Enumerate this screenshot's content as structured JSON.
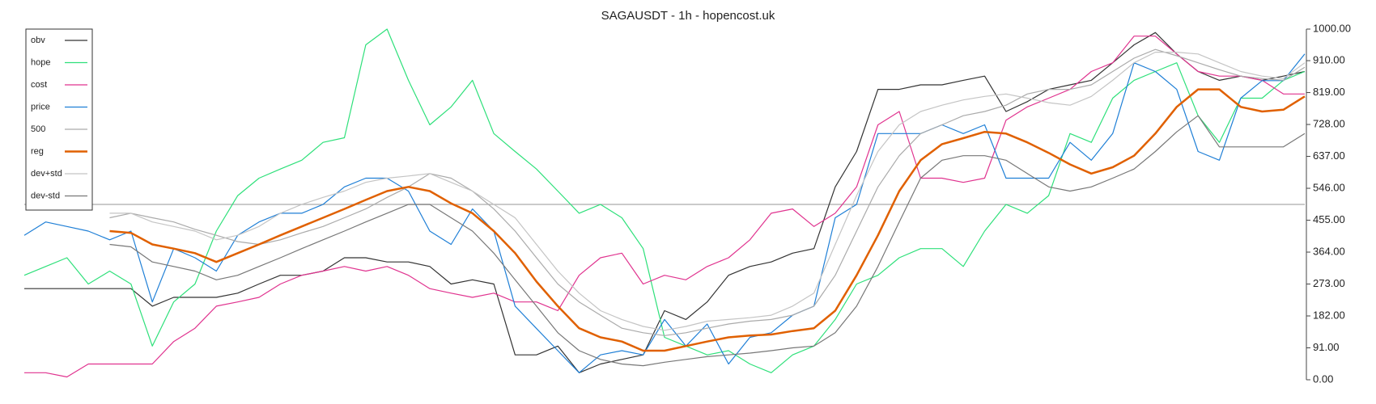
{
  "chart_data": {
    "type": "line",
    "title": "SAGAUSDT - 1h - hopencost.uk",
    "ylim": [
      0,
      1000
    ],
    "yticks": [
      {
        "value": 0,
        "label": "0.00"
      },
      {
        "value": 91,
        "label": "91.00"
      },
      {
        "value": 182,
        "label": "182.00"
      },
      {
        "value": 273,
        "label": "273.00"
      },
      {
        "value": 364,
        "label": "364.00"
      },
      {
        "value": 455,
        "label": "455.00"
      },
      {
        "value": 546,
        "label": "546.00"
      },
      {
        "value": 637,
        "label": "637.00"
      },
      {
        "value": 728,
        "label": "728.00"
      },
      {
        "value": 819,
        "label": "819.00"
      },
      {
        "value": 910,
        "label": "910.00"
      },
      {
        "value": 1000,
        "label": "1000.00"
      }
    ],
    "hline": 500,
    "legend": "upper left",
    "series": [
      {
        "name": "obv",
        "color": "#333333",
        "linewidth": 1.2,
        "values": [
          260,
          260,
          260,
          260,
          260,
          260,
          210,
          235,
          235,
          235,
          247,
          273,
          298,
          298,
          310,
          348,
          348,
          336,
          336,
          323,
          273,
          285,
          273,
          71,
          71,
          96,
          20,
          45,
          58,
          71,
          197,
          172,
          222,
          298,
          323,
          336,
          361,
          374,
          550,
          651,
          828,
          828,
          841,
          841,
          854,
          866,
          765,
          793,
          828,
          841,
          854,
          904,
          955,
          990,
          929,
          879,
          854,
          866,
          854,
          866,
          879
        ]
      },
      {
        "name": "hope",
        "color": "#2ee07a",
        "linewidth": 1.2,
        "values": [
          298,
          323,
          348,
          273,
          310,
          273,
          96,
          222,
          273,
          424,
          525,
          575,
          601,
          626,
          677,
          690,
          955,
          1000,
          854,
          727,
          778,
          854,
          702,
          651,
          601,
          538,
          475,
          500,
          462,
          374,
          121,
          96,
          71,
          83,
          45,
          20,
          71,
          96,
          172,
          273,
          298,
          348,
          374,
          374,
          323,
          424,
          500,
          475,
          525,
          702,
          677,
          803,
          854,
          879,
          904,
          753,
          677,
          803,
          803,
          854,
          879
        ]
      },
      {
        "name": "cost",
        "color": "#e0338f",
        "linewidth": 1.2,
        "values": [
          20,
          20,
          8,
          45,
          45,
          45,
          45,
          109,
          147,
          210,
          222,
          235,
          273,
          298,
          310,
          323,
          310,
          323,
          298,
          260,
          247,
          235,
          247,
          222,
          222,
          197,
          298,
          348,
          361,
          273,
          298,
          285,
          323,
          348,
          399,
          475,
          487,
          437,
          475,
          550,
          727,
          765,
          575,
          575,
          563,
          575,
          740,
          778,
          803,
          828,
          879,
          904,
          980,
          980,
          929,
          879,
          866,
          866,
          854,
          815,
          815
        ]
      },
      {
        "name": "price",
        "color": "#1f7fd6",
        "linewidth": 1.2,
        "values": [
          412,
          450,
          437,
          424,
          399,
          424,
          222,
          374,
          348,
          310,
          412,
          450,
          475,
          475,
          500,
          550,
          575,
          575,
          538,
          424,
          386,
          487,
          424,
          210,
          146,
          83,
          20,
          71,
          83,
          71,
          172,
          96,
          159,
          45,
          121,
          134,
          184,
          210,
          462,
          500,
          702,
          702,
          702,
          727,
          702,
          727,
          575,
          575,
          575,
          677,
          626,
          702,
          904,
          879,
          828,
          651,
          626,
          803,
          853,
          853,
          929
        ]
      },
      {
        "name": "500",
        "color": "#aaaaaa",
        "linewidth": 1.2,
        "values": [
          null,
          null,
          null,
          null,
          462,
          475,
          462,
          450,
          429,
          412,
          394,
          386,
          399,
          419,
          437,
          462,
          487,
          520,
          550,
          588,
          575,
          538,
          487,
          424,
          348,
          273,
          222,
          184,
          147,
          134,
          126,
          134,
          147,
          159,
          167,
          172,
          184,
          210,
          298,
          424,
          550,
          639,
          702,
          727,
          753,
          765,
          783,
          815,
          828,
          828,
          841,
          879,
          917,
          942,
          924,
          904,
          884,
          866,
          859,
          854,
          891
        ]
      },
      {
        "name": "reg",
        "color": "#e06000",
        "linewidth": 2.5,
        "values": [
          null,
          null,
          null,
          null,
          424,
          419,
          386,
          374,
          361,
          336,
          361,
          386,
          412,
          437,
          462,
          487,
          513,
          538,
          550,
          538,
          503,
          475,
          424,
          361,
          280,
          210,
          147,
          121,
          109,
          83,
          83,
          96,
          109,
          121,
          126,
          129,
          139,
          147,
          197,
          298,
          412,
          538,
          626,
          672,
          689,
          707,
          702,
          677,
          647,
          614,
          588,
          606,
          639,
          702,
          778,
          828,
          828,
          778,
          765,
          770,
          808
        ]
      },
      {
        "name": "dev+std",
        "color": "#c4c4c4",
        "linewidth": 1.2,
        "values": [
          null,
          null,
          null,
          null,
          475,
          475,
          450,
          437,
          424,
          399,
          412,
          437,
          475,
          500,
          520,
          538,
          563,
          575,
          581,
          588,
          563,
          538,
          500,
          462,
          386,
          310,
          247,
          197,
          172,
          152,
          141,
          152,
          167,
          172,
          177,
          184,
          210,
          247,
          386,
          525,
          651,
          727,
          765,
          783,
          798,
          808,
          815,
          803,
          790,
          783,
          808,
          854,
          904,
          934,
          934,
          929,
          904,
          879,
          866,
          859,
          904
        ]
      },
      {
        "name": "dev-std",
        "color": "#777777",
        "linewidth": 1.2,
        "values": [
          null,
          null,
          null,
          null,
          386,
          379,
          336,
          323,
          310,
          285,
          298,
          323,
          348,
          374,
          399,
          424,
          450,
          475,
          500,
          500,
          462,
          424,
          361,
          285,
          210,
          134,
          83,
          58,
          45,
          40,
          50,
          58,
          66,
          71,
          76,
          83,
          91,
          96,
          134,
          210,
          323,
          450,
          575,
          626,
          639,
          639,
          626,
          588,
          550,
          538,
          550,
          575,
          601,
          651,
          707,
          753,
          664,
          664,
          664,
          664,
          702
        ]
      }
    ]
  }
}
